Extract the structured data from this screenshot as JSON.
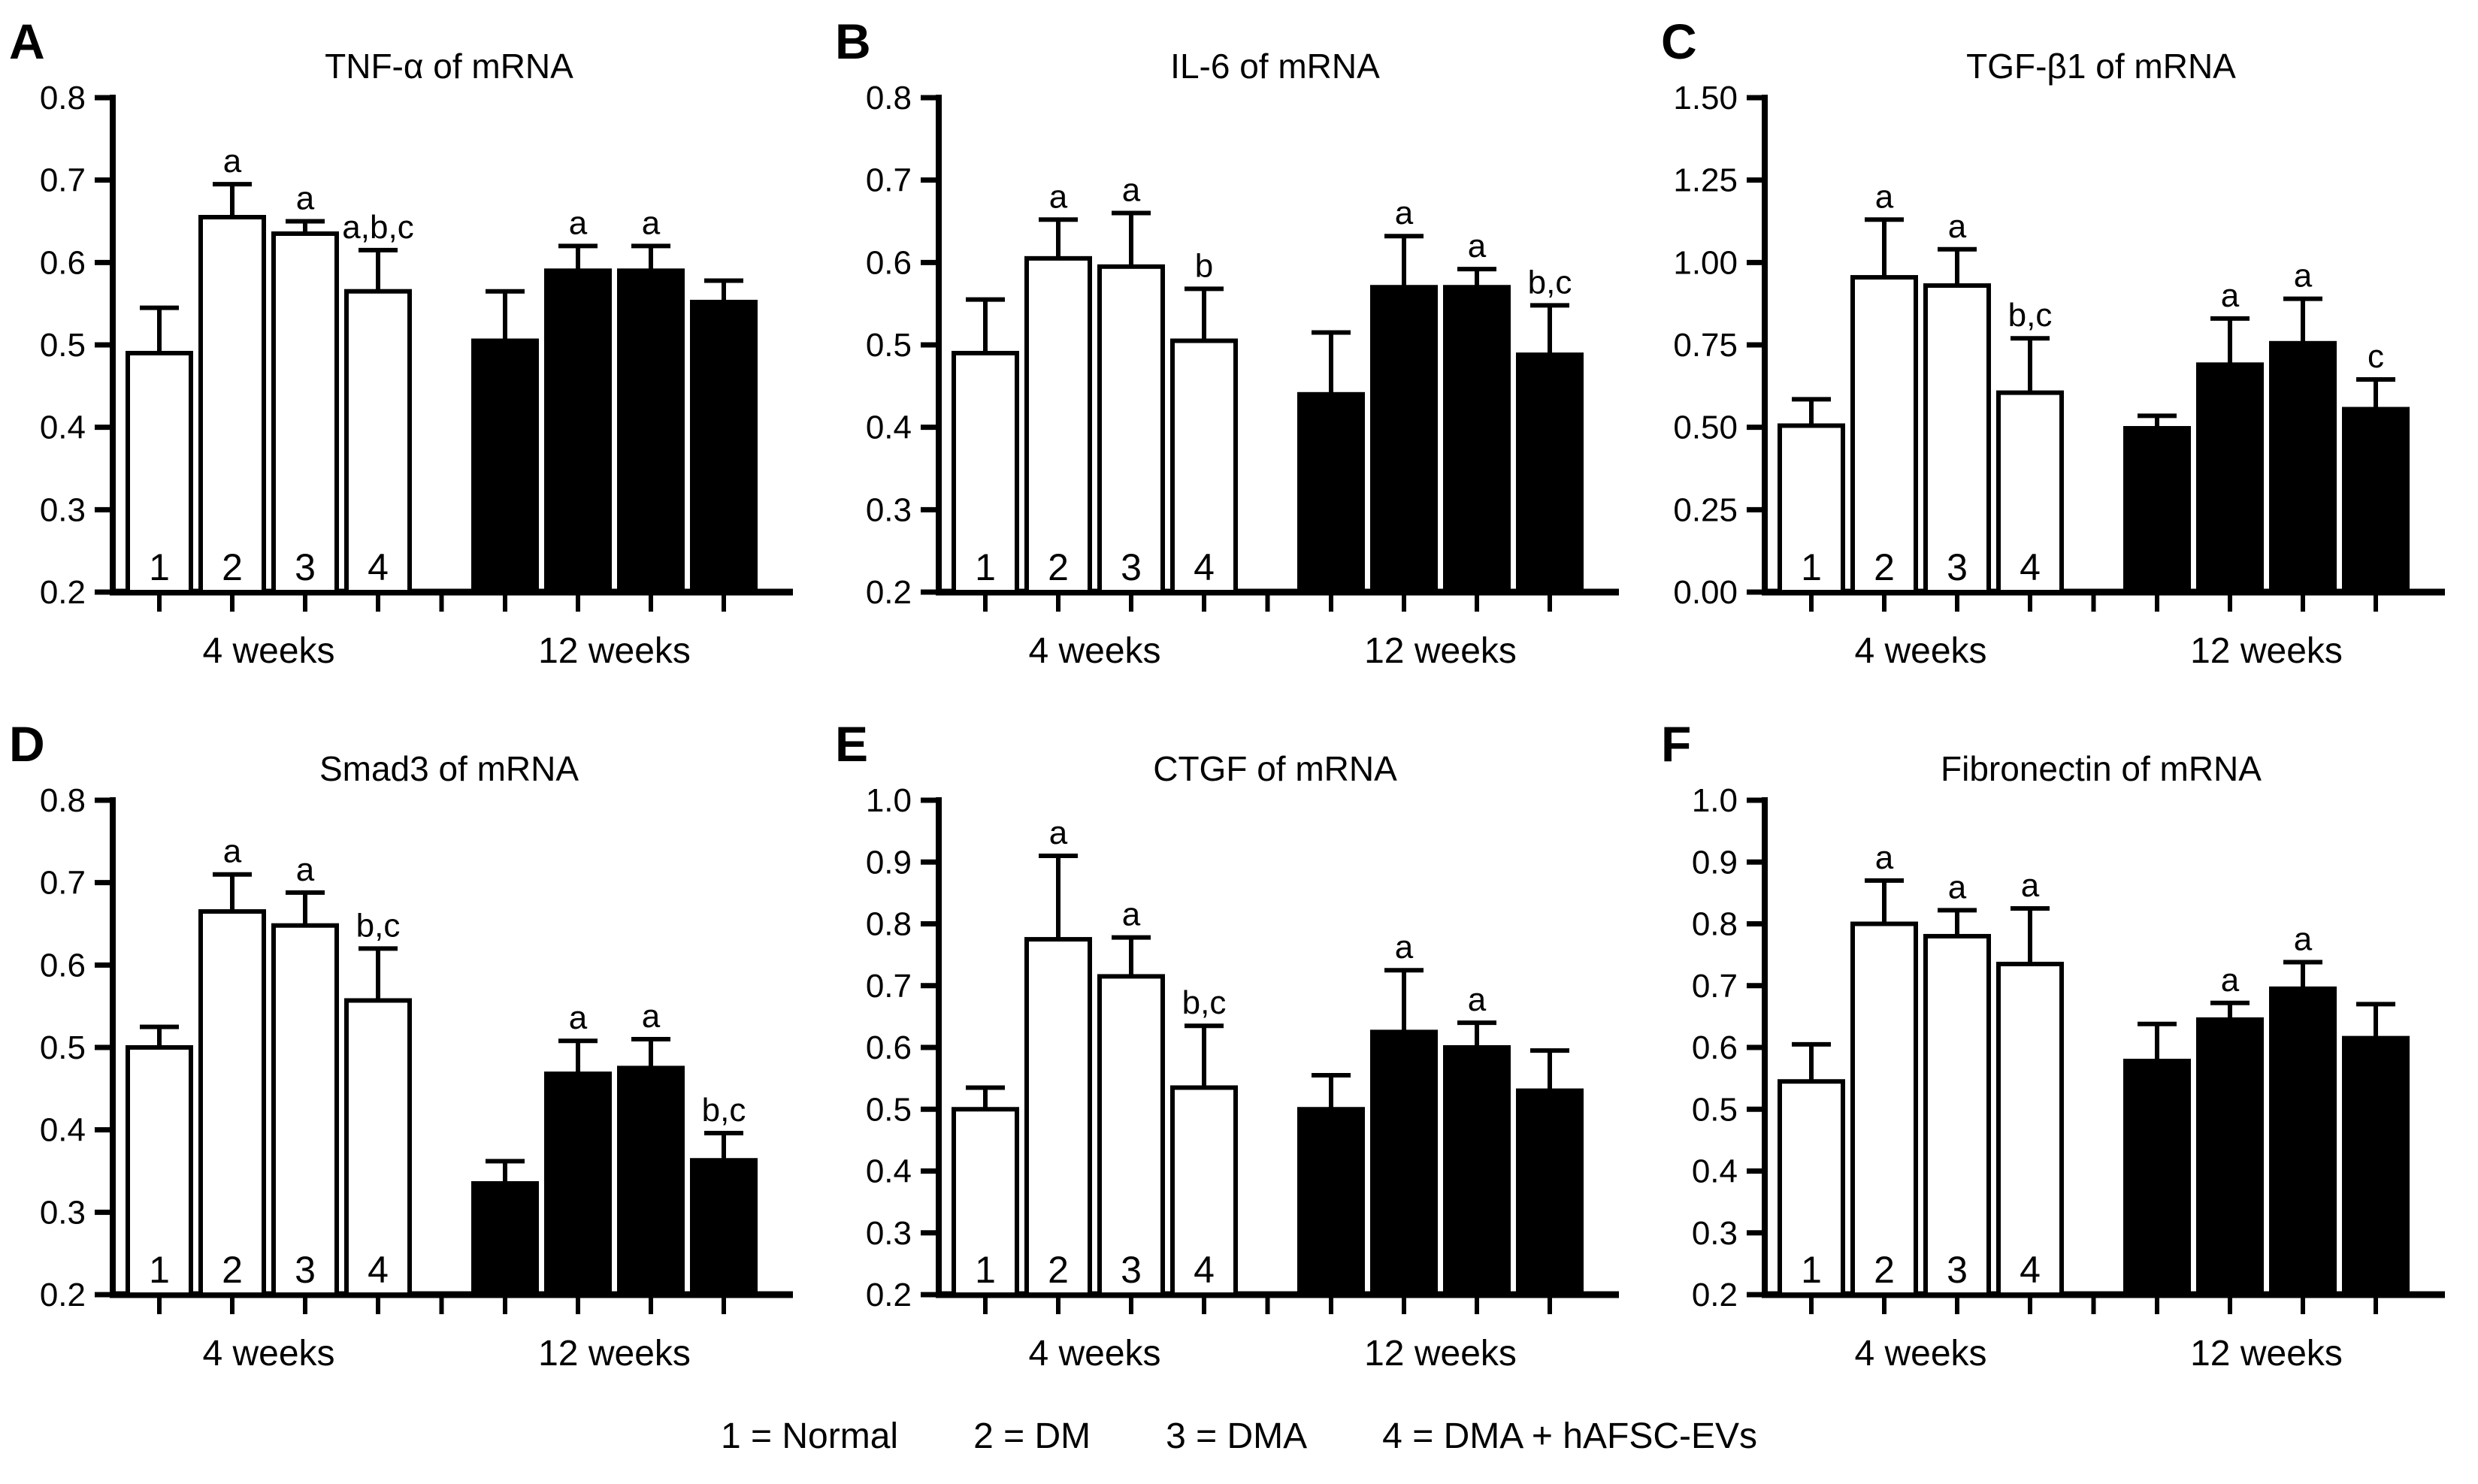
{
  "figure_colors": {
    "bar_4weeks": "#ffffff",
    "bar_12weeks": "#000000",
    "stroke": "#000000",
    "background": "#ffffff"
  },
  "group_labels": [
    "4 weeks",
    "12 weeks"
  ],
  "legend": {
    "items": [
      "1 = Normal",
      "2 = DM",
      "3 = DMA",
      "4 = DMA + hAFSC-EVs"
    ]
  },
  "chart_data": [
    {
      "type": "bar",
      "panel": "A",
      "title": "TNF-α of mRNA",
      "ylim": [
        0.2,
        0.8
      ],
      "yticks": [
        "0.2",
        "0.3",
        "0.4",
        "0.5",
        "0.6",
        "0.7",
        "0.8"
      ],
      "grid": false,
      "groups": [
        {
          "label": "4 weeks",
          "fill": "#ffffff",
          "bars": [
            {
              "n": "1",
              "value": 0.49,
              "err_top": 0.545,
              "sig": ""
            },
            {
              "n": "2",
              "value": 0.655,
              "err_top": 0.695,
              "sig": "a"
            },
            {
              "n": "3",
              "value": 0.635,
              "err_top": 0.65,
              "sig": "a"
            },
            {
              "n": "4",
              "value": 0.565,
              "err_top": 0.615,
              "sig": "a,b,c"
            }
          ]
        },
        {
          "label": "12 weeks",
          "fill": "#000000",
          "bars": [
            {
              "n": "1",
              "value": 0.505,
              "err_top": 0.565,
              "sig": ""
            },
            {
              "n": "2",
              "value": 0.59,
              "err_top": 0.62,
              "sig": "a"
            },
            {
              "n": "3",
              "value": 0.59,
              "err_top": 0.62,
              "sig": "a"
            },
            {
              "n": "4",
              "value": 0.552,
              "err_top": 0.578,
              "sig": ""
            }
          ]
        }
      ]
    },
    {
      "type": "bar",
      "panel": "B",
      "title": "IL-6 of mRNA",
      "ylim": [
        0.2,
        0.8
      ],
      "yticks": [
        "0.2",
        "0.3",
        "0.4",
        "0.5",
        "0.6",
        "0.7",
        "0.8"
      ],
      "grid": false,
      "groups": [
        {
          "label": "4 weeks",
          "fill": "#ffffff",
          "bars": [
            {
              "n": "1",
              "value": 0.49,
              "err_top": 0.555,
              "sig": ""
            },
            {
              "n": "2",
              "value": 0.605,
              "err_top": 0.652,
              "sig": "a"
            },
            {
              "n": "3",
              "value": 0.595,
              "err_top": 0.66,
              "sig": "a"
            },
            {
              "n": "4",
              "value": 0.505,
              "err_top": 0.568,
              "sig": "b"
            }
          ]
        },
        {
          "label": "12 weeks",
          "fill": "#000000",
          "bars": [
            {
              "n": "1",
              "value": 0.44,
              "err_top": 0.515,
              "sig": ""
            },
            {
              "n": "2",
              "value": 0.57,
              "err_top": 0.632,
              "sig": "a"
            },
            {
              "n": "3",
              "value": 0.57,
              "err_top": 0.592,
              "sig": "a"
            },
            {
              "n": "4",
              "value": 0.488,
              "err_top": 0.548,
              "sig": "b,c"
            }
          ]
        }
      ]
    },
    {
      "type": "bar",
      "panel": "C",
      "title": "TGF-β1 of mRNA",
      "ylim": [
        0.0,
        1.5
      ],
      "yticks": [
        "0.00",
        "0.25",
        "0.50",
        "0.75",
        "1.00",
        "1.25",
        "1.50"
      ],
      "grid": false,
      "groups": [
        {
          "label": "4 weeks",
          "fill": "#ffffff",
          "bars": [
            {
              "n": "1",
              "value": 0.505,
              "err_top": 0.585,
              "sig": ""
            },
            {
              "n": "2",
              "value": 0.955,
              "err_top": 1.13,
              "sig": "a"
            },
            {
              "n": "3",
              "value": 0.93,
              "err_top": 1.04,
              "sig": "a"
            },
            {
              "n": "4",
              "value": 0.605,
              "err_top": 0.77,
              "sig": "b,c"
            }
          ]
        },
        {
          "label": "12 weeks",
          "fill": "#000000",
          "bars": [
            {
              "n": "1",
              "value": 0.497,
              "err_top": 0.535,
              "sig": ""
            },
            {
              "n": "2",
              "value": 0.69,
              "err_top": 0.83,
              "sig": "a"
            },
            {
              "n": "3",
              "value": 0.755,
              "err_top": 0.89,
              "sig": "a"
            },
            {
              "n": "4",
              "value": 0.555,
              "err_top": 0.645,
              "sig": "c"
            }
          ]
        }
      ]
    },
    {
      "type": "bar",
      "panel": "D",
      "title": "Smad3 of mRNA",
      "ylim": [
        0.2,
        0.8
      ],
      "yticks": [
        "0.2",
        "0.3",
        "0.4",
        "0.5",
        "0.6",
        "0.7",
        "0.8"
      ],
      "grid": false,
      "groups": [
        {
          "label": "4 weeks",
          "fill": "#ffffff",
          "bars": [
            {
              "n": "1",
              "value": 0.5,
              "err_top": 0.525,
              "sig": ""
            },
            {
              "n": "2",
              "value": 0.665,
              "err_top": 0.71,
              "sig": "a"
            },
            {
              "n": "3",
              "value": 0.648,
              "err_top": 0.688,
              "sig": "a"
            },
            {
              "n": "4",
              "value": 0.557,
              "err_top": 0.62,
              "sig": "b,c"
            }
          ]
        },
        {
          "label": "12 weeks",
          "fill": "#000000",
          "bars": [
            {
              "n": "1",
              "value": 0.335,
              "err_top": 0.362,
              "sig": ""
            },
            {
              "n": "2",
              "value": 0.468,
              "err_top": 0.508,
              "sig": "a"
            },
            {
              "n": "3",
              "value": 0.475,
              "err_top": 0.51,
              "sig": "a"
            },
            {
              "n": "4",
              "value": 0.363,
              "err_top": 0.396,
              "sig": "b,c"
            }
          ]
        }
      ]
    },
    {
      "type": "bar",
      "panel": "E",
      "title": "CTGF of mRNA",
      "ylim": [
        0.2,
        1.0
      ],
      "yticks": [
        "0.2",
        "0.3",
        "0.4",
        "0.5",
        "0.6",
        "0.7",
        "0.8",
        "0.9",
        "1.0"
      ],
      "grid": false,
      "groups": [
        {
          "label": "4 weeks",
          "fill": "#ffffff",
          "bars": [
            {
              "n": "1",
              "value": 0.5,
              "err_top": 0.535,
              "sig": ""
            },
            {
              "n": "2",
              "value": 0.775,
              "err_top": 0.91,
              "sig": "a"
            },
            {
              "n": "3",
              "value": 0.715,
              "err_top": 0.778,
              "sig": "a"
            },
            {
              "n": "4",
              "value": 0.535,
              "err_top": 0.635,
              "sig": "b,c"
            }
          ]
        },
        {
          "label": "12 weeks",
          "fill": "#000000",
          "bars": [
            {
              "n": "1",
              "value": 0.5,
              "err_top": 0.555,
              "sig": ""
            },
            {
              "n": "2",
              "value": 0.625,
              "err_top": 0.725,
              "sig": "a"
            },
            {
              "n": "3",
              "value": 0.6,
              "err_top": 0.64,
              "sig": "a"
            },
            {
              "n": "4",
              "value": 0.53,
              "err_top": 0.595,
              "sig": ""
            }
          ]
        }
      ]
    },
    {
      "type": "bar",
      "panel": "F",
      "title": "Fibronectin of mRNA",
      "ylim": [
        0.2,
        1.0
      ],
      "yticks": [
        "0.2",
        "0.3",
        "0.4",
        "0.5",
        "0.6",
        "0.7",
        "0.8",
        "0.9",
        "1.0"
      ],
      "grid": false,
      "groups": [
        {
          "label": "4 weeks",
          "fill": "#ffffff",
          "bars": [
            {
              "n": "1",
              "value": 0.545,
              "err_top": 0.605,
              "sig": ""
            },
            {
              "n": "2",
              "value": 0.8,
              "err_top": 0.87,
              "sig": "a"
            },
            {
              "n": "3",
              "value": 0.78,
              "err_top": 0.822,
              "sig": "a"
            },
            {
              "n": "4",
              "value": 0.735,
              "err_top": 0.825,
              "sig": "a"
            }
          ]
        },
        {
          "label": "12 weeks",
          "fill": "#000000",
          "bars": [
            {
              "n": "1",
              "value": 0.578,
              "err_top": 0.638,
              "sig": ""
            },
            {
              "n": "2",
              "value": 0.645,
              "err_top": 0.672,
              "sig": "a"
            },
            {
              "n": "3",
              "value": 0.695,
              "err_top": 0.738,
              "sig": "a"
            },
            {
              "n": "4",
              "value": 0.615,
              "err_top": 0.67,
              "sig": ""
            }
          ]
        }
      ]
    }
  ]
}
